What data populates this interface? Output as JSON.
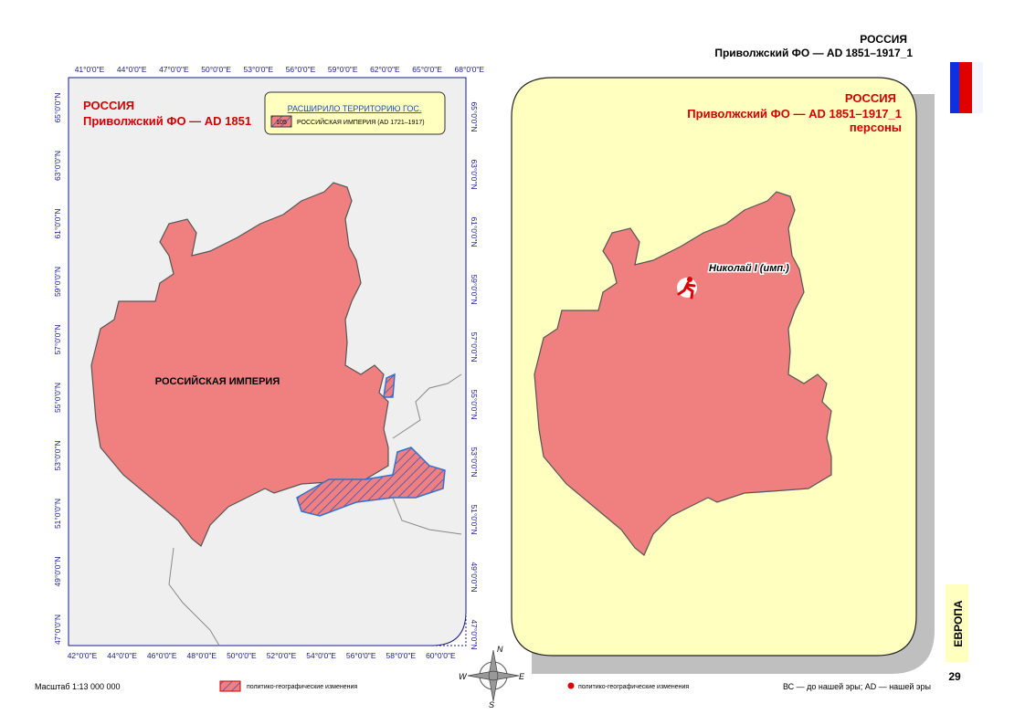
{
  "header": {
    "country": "РОССИЯ",
    "subtitle": "Приволжский ФО — AD 1851–1917_1"
  },
  "left_map": {
    "title": "РОССИЯ",
    "subtitle": "Приволжский ФО — AD 1851",
    "legend_title": "РАСШИРИЛО ТЕРРИТОРИЮ ГОС.",
    "legend_code": "105",
    "legend_item": "РОССИЙСКАЯ ИМПЕРИЯ (AD 1721–1917)",
    "region_label": "РОССИЙСКАЯ ИМПЕРИЯ",
    "top_ticks": [
      "41°0'0\"E",
      "44°0'0\"E",
      "47°0'0\"E",
      "50°0'0\"E",
      "53°0'0\"E",
      "56°0'0\"E",
      "59°0'0\"E",
      "62°0'0\"E",
      "65°0'0\"E",
      "68°0'0\"E"
    ],
    "bottom_ticks": [
      "42°0'0\"E",
      "44°0'0\"E",
      "46°0'0\"E",
      "48°0'0\"E",
      "50°0'0\"E",
      "52°0'0\"E",
      "54°0'0\"E",
      "56°0'0\"E",
      "58°0'0\"E",
      "60°0'0\"E"
    ],
    "left_ticks": [
      "65°0'0\"N",
      "63°0'0\"N",
      "61°0'0\"N",
      "59°0'0\"N",
      "57°0'0\"N",
      "55°0'0\"N",
      "53°0'0\"N",
      "51°0'0\"N",
      "49°0'0\"N",
      "47°0'0\"N"
    ],
    "right_ticks": [
      "65°0'0\"N",
      "63°0'0\"N",
      "61°0'0\"N",
      "59°0'0\"N",
      "57°0'0\"N",
      "55°0'0\"N",
      "53°0'0\"N",
      "51°0'0\"N",
      "49°0'0\"N",
      "47°0'0\"N"
    ]
  },
  "right_map": {
    "title": "РОССИЯ",
    "subtitle": "Приволжский ФО — AD 1851–1917_1",
    "subtitle2": "персоны",
    "person": "Николай I (имп.)"
  },
  "compass": {
    "north": "N",
    "west": "W",
    "east": "E",
    "south": "S"
  },
  "footer": {
    "scale": "Масштаб 1:13 000 000",
    "legend_changes": "политико-географические изменения",
    "legend_points": "политико-географические изменения",
    "era_note": "ВС — до нашей эры; AD — нашей эры",
    "section": "ЕВРОПА",
    "page": "29"
  }
}
